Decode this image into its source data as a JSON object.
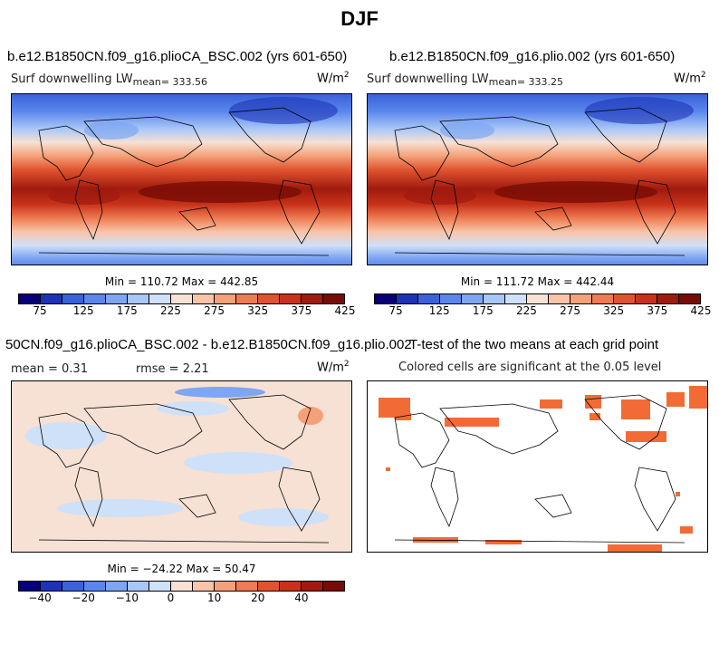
{
  "title": "DJF",
  "colors": {
    "scale": [
      "#08007a",
      "#1c33b8",
      "#3a62da",
      "#5a87ec",
      "#7ea6f2",
      "#a8c6f7",
      "#cfe0f9",
      "#f6e1d4",
      "#f9c4a8",
      "#f4a078",
      "#ee7b52",
      "#e0532f",
      "#c8321a",
      "#a01a0e",
      "#780c05"
    ],
    "ttest": "#f26b35",
    "land": "#000000"
  },
  "panels": {
    "p1": {
      "title": "b.e12.B1850CN.f09_g16.plioCA_BSC.002 (yrs 601-650)",
      "var_label": "Surf downwelling LW",
      "mean_label": "mean= 333.56",
      "unit": "W/m",
      "unit_exp": "2",
      "minmax": "Min = 110.72 Max = 442.85"
    },
    "p2": {
      "title": "b.e12.B1850CN.f09_g16.plio.002 (yrs 601-650)",
      "var_label": "Surf downwelling LW",
      "mean_label": "mean= 333.25",
      "unit": "W/m",
      "unit_exp": "2",
      "minmax": "Min = 111.72 Max = 442.44"
    },
    "p3": {
      "title": "50CN.f09_g16.plioCA_BSC.002 - b.e12.B1850CN.f09_g16.plio.002",
      "mean_label": "mean =    0.31",
      "rmse_label": "rmse =    2.21",
      "unit": "W/m",
      "unit_exp": "2",
      "minmax": "Min = −24.22 Max =  50.47"
    },
    "p4": {
      "title": "T-test of the two means at each grid point",
      "subtitle": "Colored cells are significant at the 0.05 level"
    }
  },
  "chart_data": [
    {
      "type": "heatmap",
      "title": "b.e12.B1850CN.f09_g16.plioCA_BSC.002 (yrs 601-650)",
      "variable": "Surf downwelling LW",
      "units": "W/m^2",
      "mean": 333.56,
      "min": 110.72,
      "max": 442.85,
      "colorbar_ticks": [
        "75",
        "125",
        "175",
        "225",
        "275",
        "325",
        "375",
        "425"
      ],
      "colorbar_levels": [
        50,
        75,
        100,
        125,
        150,
        175,
        200,
        225,
        250,
        275,
        300,
        325,
        350,
        375,
        400,
        425
      ]
    },
    {
      "type": "heatmap",
      "title": "b.e12.B1850CN.f09_g16.plio.002 (yrs 601-650)",
      "variable": "Surf downwelling LW",
      "units": "W/m^2",
      "mean": 333.25,
      "min": 111.72,
      "max": 442.44,
      "colorbar_ticks": [
        "75",
        "125",
        "175",
        "225",
        "275",
        "325",
        "375",
        "425"
      ]
    },
    {
      "type": "heatmap",
      "title": "50CN.f09_g16.plioCA_BSC.002 - b.e12.B1850CN.f09_g16.plio.002",
      "units": "W/m^2",
      "mean": 0.31,
      "rmse": 2.21,
      "min": -24.22,
      "max": 50.47,
      "colorbar_ticks": [
        "−40",
        "−20",
        "−10",
        "0",
        "10",
        "20",
        "40"
      ]
    },
    {
      "type": "heatmap",
      "title": "T-test of the two means at each grid point",
      "note": "Colored cells are significant at the 0.05 level"
    }
  ]
}
